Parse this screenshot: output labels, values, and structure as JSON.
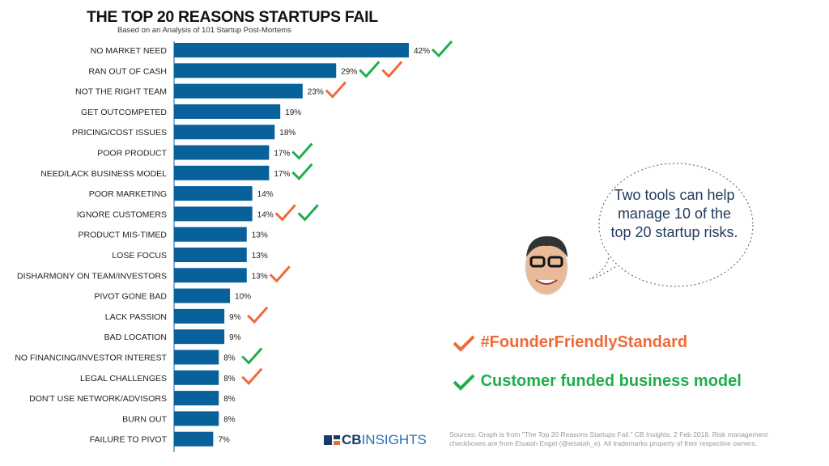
{
  "chart_data": {
    "type": "bar",
    "orientation": "horizontal",
    "title": "THE TOP 20 REASONS STARTUPS FAIL",
    "subtitle": "Based on an Analysis of 101 Startup Post-Mortems",
    "categories": [
      "NO MARKET NEED",
      "RAN OUT OF CASH",
      "NOT THE RIGHT TEAM",
      "GET OUTCOMPETED",
      "PRICING/COST ISSUES",
      "POOR PRODUCT",
      "NEED/LACK BUSINESS MODEL",
      "POOR MARKETING",
      "IGNORE CUSTOMERS",
      "PRODUCT MIS-TIMED",
      "LOSE FOCUS",
      "DISHARMONY ON TEAM/INVESTORS",
      "PIVOT GONE BAD",
      "LACK PASSION",
      "BAD LOCATION",
      "NO FINANCING/INVESTOR INTEREST",
      "LEGAL CHALLENGES",
      "DON'T USE NETWORK/ADVISORS",
      "BURN OUT",
      "FAILURE TO PIVOT"
    ],
    "values": [
      42,
      29,
      23,
      19,
      18,
      17,
      17,
      14,
      14,
      13,
      13,
      13,
      10,
      9,
      9,
      8,
      8,
      8,
      8,
      7
    ],
    "labels": [
      "42%",
      "29%",
      "23%",
      "19%",
      "18%",
      "17%",
      "17%",
      "14%",
      "14%",
      "13%",
      "13%",
      "13%",
      "10%",
      "9%",
      "9%",
      "8%",
      "8%",
      "8%",
      "8%",
      "7%"
    ],
    "checks": [
      [
        "green"
      ],
      [
        "green",
        "orange"
      ],
      [
        "orange"
      ],
      [],
      [],
      [
        "green"
      ],
      [
        "green"
      ],
      [],
      [
        "orange",
        "green"
      ],
      [],
      [],
      [
        "orange"
      ],
      [],
      [
        "orange"
      ],
      [],
      [
        "green"
      ],
      [
        "orange"
      ],
      [],
      [],
      []
    ],
    "bar_color": "#08619a",
    "unit": "%"
  },
  "bubble": {
    "text": "Two tools can help manage 10 of the top 20 startup risks."
  },
  "legend": {
    "orange": {
      "label": "#FounderFriendlyStandard",
      "color": "#ef6a3a"
    },
    "green": {
      "label": "Customer funded business model",
      "color": "#1fae4b"
    }
  },
  "logo": {
    "text_bold": "CB",
    "text_light": "INSIGHTS"
  },
  "sources": "Sources: Graph is from \"The Top 20 Reasons Startups Fail.\" CB Insights. 2 Feb 2018. Risk management checkboxes are from Eisaiah Engel (@eisaiah_e). All trademarks property of their respective owners."
}
